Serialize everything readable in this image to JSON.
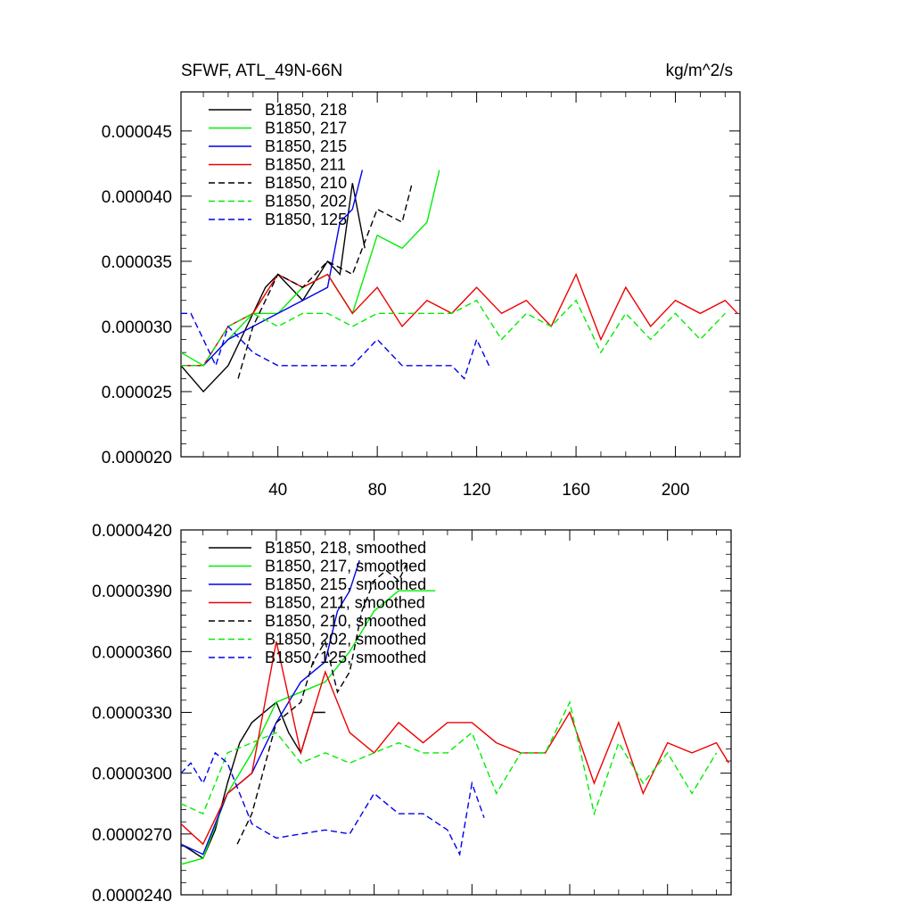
{
  "colors": {
    "s218": "#000000",
    "s217": "#00ee00",
    "s215": "#0000ee",
    "s211": "#ee0000",
    "s210": "#000000",
    "s202": "#00ee00",
    "s125": "#0000ee"
  },
  "chart_data": [
    {
      "type": "line",
      "title": "SFWF, ATL_49N-66N",
      "units": "kg/m^2/s",
      "xlim": [
        1,
        226
      ],
      "ylim": [
        2e-05,
        4.8e-05
      ],
      "x_ticks": [
        40,
        80,
        120,
        160,
        200
      ],
      "x_tick_labels": [
        "40",
        "80",
        "120",
        "160",
        "200"
      ],
      "y_ticks": [
        2e-05,
        2.5e-05,
        3e-05,
        3.5e-05,
        4e-05,
        4.5e-05
      ],
      "y_tick_labels": [
        "0.000020",
        "0.000025",
        "0.000030",
        "0.000035",
        "0.000040",
        "0.000045"
      ],
      "legend_position": "top-left",
      "series": [
        {
          "name": "B1850, 218",
          "style": "solid",
          "color_key": "s218",
          "x": [
            1,
            10,
            20,
            25,
            30,
            35,
            40,
            50,
            60,
            65,
            70,
            75
          ],
          "y": [
            2.7e-05,
            2.5e-05,
            2.7e-05,
            2.9e-05,
            3.1e-05,
            3.3e-05,
            3.4e-05,
            3.2e-05,
            3.5e-05,
            3.4e-05,
            4.1e-05,
            3.6e-05
          ]
        },
        {
          "name": "B1850, 217",
          "style": "solid",
          "color_key": "s217",
          "x": [
            1,
            10,
            20,
            30,
            40,
            50,
            60,
            70,
            80,
            90,
            100,
            105
          ],
          "y": [
            2.8e-05,
            2.7e-05,
            2.9e-05,
            3.1e-05,
            3.1e-05,
            3.3e-05,
            3.4e-05,
            3.1e-05,
            3.7e-05,
            3.6e-05,
            3.8e-05,
            4.2e-05
          ]
        },
        {
          "name": "B1850, 215",
          "style": "solid",
          "color_key": "s215",
          "x": [
            1,
            10,
            20,
            30,
            40,
            50,
            60,
            65,
            70,
            74
          ],
          "y": [
            2.7e-05,
            2.7e-05,
            2.9e-05,
            3e-05,
            3.1e-05,
            3.2e-05,
            3.3e-05,
            3.8e-05,
            3.9e-05,
            4.2e-05
          ]
        },
        {
          "name": "B1850, 211",
          "style": "solid",
          "color_key": "s211",
          "x": [
            1,
            10,
            20,
            30,
            40,
            50,
            60,
            70,
            80,
            90,
            100,
            110,
            120,
            130,
            140,
            150,
            160,
            170,
            180,
            190,
            200,
            210,
            220,
            225
          ],
          "y": [
            2.7e-05,
            2.7e-05,
            3e-05,
            3.1e-05,
            3.4e-05,
            3.3e-05,
            3.4e-05,
            3.1e-05,
            3.3e-05,
            3e-05,
            3.2e-05,
            3.1e-05,
            3.3e-05,
            3.1e-05,
            3.2e-05,
            3e-05,
            3.4e-05,
            2.9e-05,
            3.3e-05,
            3e-05,
            3.2e-05,
            3.1e-05,
            3.2e-05,
            3.1e-05
          ]
        },
        {
          "name": "B1850, 210",
          "style": "dashed",
          "color_key": "s210",
          "x": [
            24,
            30,
            40,
            50,
            60,
            70,
            80,
            90,
            94
          ],
          "y": [
            2.6e-05,
            3e-05,
            3.4e-05,
            3.3e-05,
            3.5e-05,
            3.4e-05,
            3.9e-05,
            3.8e-05,
            4.1e-05
          ]
        },
        {
          "name": "B1850, 202",
          "style": "dashed",
          "color_key": "s202",
          "x": [
            1,
            10,
            20,
            30,
            40,
            50,
            60,
            70,
            80,
            90,
            100,
            110,
            120,
            130,
            140,
            150,
            160,
            170,
            180,
            190,
            200,
            210,
            220
          ],
          "y": [
            2.7e-05,
            2.7e-05,
            3e-05,
            3.1e-05,
            3e-05,
            3.1e-05,
            3.1e-05,
            3e-05,
            3.1e-05,
            3.1e-05,
            3.1e-05,
            3.1e-05,
            3.2e-05,
            2.9e-05,
            3.1e-05,
            3e-05,
            3.2e-05,
            2.8e-05,
            3.1e-05,
            2.9e-05,
            3.1e-05,
            2.9e-05,
            3.1e-05
          ]
        },
        {
          "name": "B1850, 125",
          "style": "dashed",
          "color_key": "s125",
          "x": [
            1,
            5,
            10,
            15,
            20,
            25,
            30,
            40,
            50,
            60,
            70,
            80,
            90,
            100,
            110,
            115,
            120,
            125
          ],
          "y": [
            3.1e-05,
            3.1e-05,
            2.9e-05,
            2.7e-05,
            3e-05,
            2.9e-05,
            2.8e-05,
            2.7e-05,
            2.7e-05,
            2.7e-05,
            2.7e-05,
            2.9e-05,
            2.7e-05,
            2.7e-05,
            2.7e-05,
            2.6e-05,
            2.9e-05,
            2.7e-05
          ]
        }
      ]
    },
    {
      "type": "line",
      "title": "",
      "units": "",
      "xlim": [
        1,
        226
      ],
      "ylim": [
        2.4e-05,
        4.2e-05
      ],
      "x_ticks": [
        40,
        80,
        120,
        160,
        200
      ],
      "x_tick_labels": [],
      "y_ticks": [
        2.4e-05,
        2.7e-05,
        3e-05,
        3.3e-05,
        3.6e-05,
        3.9e-05,
        4.2e-05
      ],
      "y_tick_labels": [
        "0.0000240",
        "0.0000270",
        "0.0000300",
        "0.0000330",
        "0.0000360",
        "0.0000390",
        "0.0000420"
      ],
      "legend_position": "top-left",
      "series": [
        {
          "name": "B1850, 218, smoothed",
          "style": "solid",
          "color_key": "s218",
          "x": [
            1,
            5,
            10,
            15,
            20,
            25,
            30,
            35,
            40,
            45,
            50,
            55,
            60
          ],
          "y": [
            2.65e-05,
            2.62e-05,
            2.58e-05,
            2.72e-05,
            2.95e-05,
            3.15e-05,
            3.25e-05,
            3.3e-05,
            3.35e-05,
            3.2e-05,
            3.1e-05,
            3.3e-05,
            3.3e-05
          ]
        },
        {
          "name": "B1850, 217, smoothed",
          "style": "solid",
          "color_key": "s217",
          "x": [
            1,
            10,
            20,
            30,
            40,
            50,
            60,
            70,
            80,
            90,
            100,
            105
          ],
          "y": [
            2.55e-05,
            2.58e-05,
            2.9e-05,
            3.1e-05,
            3.35e-05,
            3.4e-05,
            3.45e-05,
            3.6e-05,
            3.8e-05,
            3.9e-05,
            3.9e-05,
            3.9e-05
          ]
        },
        {
          "name": "B1850, 215, smoothed",
          "style": "solid",
          "color_key": "s215",
          "x": [
            1,
            10,
            20,
            30,
            40,
            50,
            60,
            65,
            70,
            74
          ],
          "y": [
            2.65e-05,
            2.6e-05,
            2.9e-05,
            3e-05,
            3.25e-05,
            3.45e-05,
            3.55e-05,
            3.8e-05,
            3.9e-05,
            4.05e-05
          ]
        },
        {
          "name": "B1850, 211, smoothed",
          "style": "solid",
          "color_key": "s211",
          "x": [
            1,
            10,
            20,
            30,
            40,
            50,
            60,
            70,
            80,
            90,
            100,
            110,
            120,
            130,
            140,
            150,
            160,
            170,
            180,
            190,
            200,
            210,
            220,
            225
          ],
          "y": [
            2.75e-05,
            2.65e-05,
            2.9e-05,
            3e-05,
            3.65e-05,
            3.1e-05,
            3.5e-05,
            3.2e-05,
            3.1e-05,
            3.25e-05,
            3.15e-05,
            3.25e-05,
            3.25e-05,
            3.15e-05,
            3.1e-05,
            3.1e-05,
            3.3e-05,
            2.95e-05,
            3.25e-05,
            2.9e-05,
            3.15e-05,
            3.1e-05,
            3.15e-05,
            3.05e-05
          ]
        },
        {
          "name": "B1850, 210, smoothed",
          "style": "dashed",
          "color_key": "s210",
          "x": [
            24,
            30,
            40,
            50,
            55,
            60,
            65,
            70,
            75,
            80,
            85,
            90,
            94
          ],
          "y": [
            2.65e-05,
            2.8e-05,
            3.25e-05,
            3.35e-05,
            3.55e-05,
            3.65e-05,
            3.4e-05,
            3.5e-05,
            3.8e-05,
            3.95e-05,
            4e-05,
            3.95e-05,
            4.05e-05
          ]
        },
        {
          "name": "B1850, 202, smoothed",
          "style": "dashed",
          "color_key": "s202",
          "x": [
            1,
            10,
            20,
            30,
            40,
            50,
            60,
            70,
            80,
            90,
            100,
            110,
            120,
            130,
            140,
            150,
            160,
            170,
            180,
            190,
            200,
            210,
            220
          ],
          "y": [
            2.85e-05,
            2.8e-05,
            3.1e-05,
            3.15e-05,
            3.2e-05,
            3.05e-05,
            3.1e-05,
            3.05e-05,
            3.1e-05,
            3.15e-05,
            3.1e-05,
            3.1e-05,
            3.2e-05,
            2.9e-05,
            3.1e-05,
            3.1e-05,
            3.35e-05,
            2.8e-05,
            3.15e-05,
            2.95e-05,
            3.1e-05,
            2.9e-05,
            3.1e-05
          ]
        },
        {
          "name": "B1850, 125, smoothed",
          "style": "dashed",
          "color_key": "s125",
          "x": [
            1,
            5,
            10,
            15,
            20,
            25,
            30,
            40,
            50,
            60,
            70,
            80,
            90,
            100,
            110,
            115,
            120,
            125
          ],
          "y": [
            3e-05,
            3.05e-05,
            2.95e-05,
            3.1e-05,
            3.05e-05,
            2.9e-05,
            2.75e-05,
            2.68e-05,
            2.7e-05,
            2.72e-05,
            2.7e-05,
            2.9e-05,
            2.8e-05,
            2.8e-05,
            2.72e-05,
            2.6e-05,
            2.95e-05,
            2.78e-05
          ]
        }
      ]
    }
  ]
}
